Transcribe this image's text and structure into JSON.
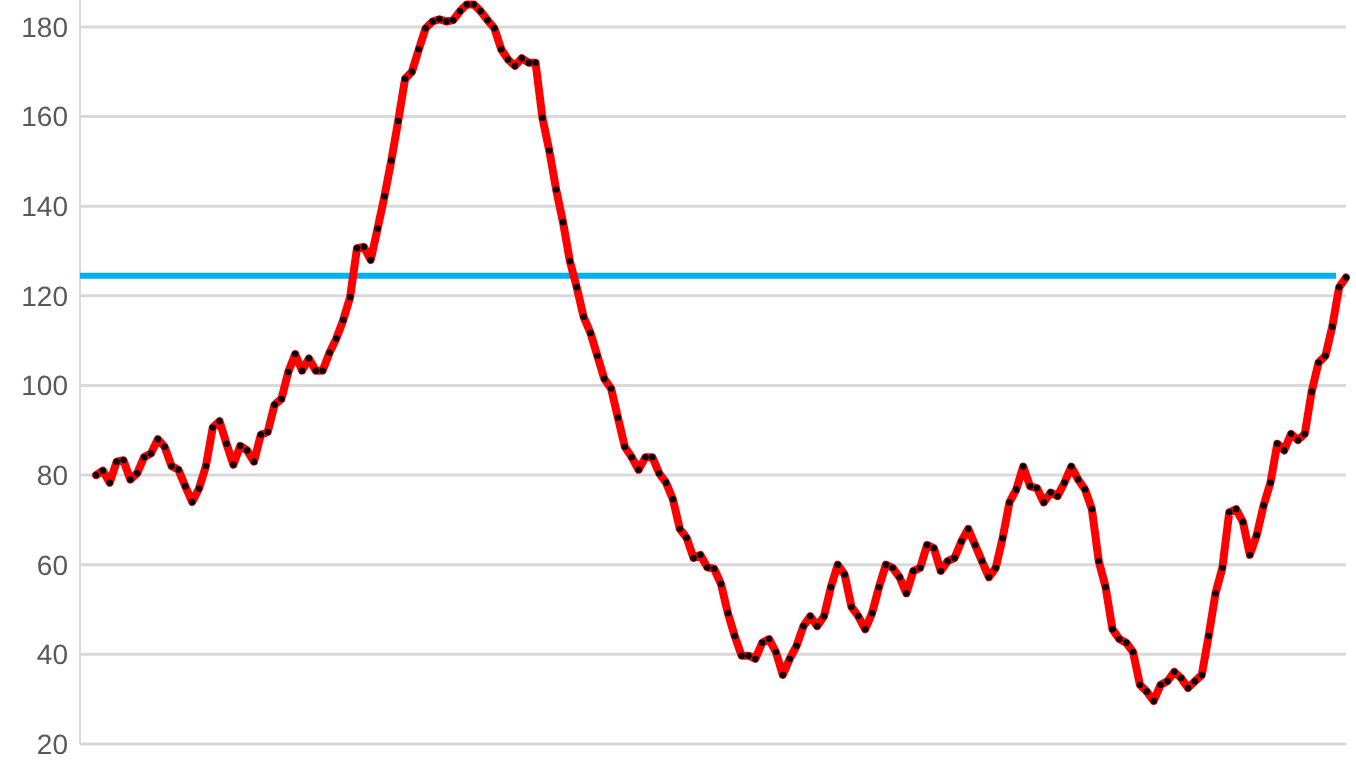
{
  "chart_data": {
    "type": "line",
    "categories": [
      null,
      null,
      null,
      null,
      null,
      null,
      null,
      null,
      null,
      null,
      null,
      null,
      null,
      null,
      null,
      null,
      null,
      null,
      null,
      null,
      null,
      null,
      null,
      null,
      null,
      null,
      null,
      null,
      null,
      null,
      null,
      null,
      null,
      null,
      null,
      null,
      null,
      null,
      null,
      null,
      null,
      null,
      null,
      null,
      null,
      null,
      null,
      null,
      null,
      null,
      null,
      null,
      null,
      null,
      null,
      null,
      null,
      null,
      null,
      null,
      null,
      null,
      null,
      null,
      null,
      null,
      null,
      null,
      null,
      null,
      null,
      null,
      null,
      null,
      null,
      null,
      null,
      null,
      null,
      null,
      null,
      null,
      null,
      null,
      null,
      null,
      null,
      null,
      null,
      null,
      null,
      null,
      null,
      null,
      null,
      null,
      null,
      null,
      null,
      null,
      null,
      null,
      null,
      null,
      null,
      null,
      null,
      null,
      null,
      null,
      null,
      null,
      null,
      null,
      null,
      null,
      null,
      null,
      null,
      null,
      null,
      null,
      null,
      null,
      null,
      null,
      null,
      null,
      null,
      null,
      null,
      null,
      null,
      null,
      null,
      null,
      null,
      null,
      null,
      null,
      null,
      null,
      null,
      null,
      null,
      null,
      null,
      null,
      null,
      null,
      null,
      null,
      null,
      null,
      null,
      null,
      null,
      null,
      null,
      null,
      null,
      null,
      null,
      null,
      null,
      null,
      null,
      null,
      null,
      null,
      null,
      null,
      null,
      null,
      null,
      null,
      null,
      null,
      null,
      null,
      null,
      null,
      null
    ],
    "series": [
      {
        "color": "#ff0000",
        "values": [
          80,
          81,
          78.3,
          83,
          83.3,
          79,
          80.4,
          84,
          84.8,
          88,
          86.3,
          82,
          81.2,
          77.5,
          74,
          77,
          82,
          90.6,
          92,
          87,
          82.3,
          86.5,
          85.5,
          83,
          89,
          89.6,
          95.7,
          97,
          103,
          107,
          103.3,
          106,
          103.3,
          103.3,
          107.3,
          110.5,
          114.6,
          119.7,
          130.6,
          130.9,
          128,
          135,
          142.2,
          150.2,
          159,
          168.4,
          170,
          175,
          179.7,
          181.2,
          181.7,
          181.2,
          181.5,
          183.5,
          185,
          185,
          183.5,
          181.5,
          179.7,
          175,
          172.7,
          171.3,
          173,
          172,
          172,
          159.7,
          152.4,
          143.7,
          136.4,
          127.7,
          121.9,
          115.3,
          111.7,
          106.6,
          101.5,
          99.3,
          92.8,
          86.3,
          84,
          81.2,
          84,
          84,
          80.4,
          78.3,
          74.6,
          68,
          66,
          61.5,
          62.2,
          59.4,
          59.1,
          55.7,
          49.2,
          44.1,
          39.7,
          39.7,
          39,
          42.6,
          43.4,
          40.5,
          35.4,
          39,
          41.9,
          46.3,
          48.5,
          46.3,
          48.5,
          55,
          60,
          57.8,
          50.6,
          48.5,
          45.6,
          49.2,
          55,
          60,
          59.3,
          57.2,
          53.6,
          58.6,
          59.3,
          64.4,
          63.7,
          58.6,
          60.8,
          61.5,
          65.2,
          68,
          64.4,
          60.8,
          57.2,
          59.3,
          65.9,
          73.9,
          76.8,
          81.9,
          77.5,
          77.1,
          73.9,
          76.1,
          75.3,
          78.3,
          81.9,
          79,
          76.8,
          72.4,
          60.8,
          55,
          45.6,
          43.4,
          42.6,
          40.5,
          33.2,
          31.7,
          29.6,
          33.2,
          34,
          36.1,
          34.7,
          32.5,
          34,
          35.4,
          44.1,
          53.6,
          59.3,
          71.7,
          72.4,
          69.5,
          62.2,
          66.6,
          73.2,
          78.3,
          87,
          85.5,
          89.2,
          87.8,
          89.2,
          98.6,
          105.1,
          106.6,
          113.1,
          121.9,
          124.1
        ]
      }
    ],
    "ylim": [
      20,
      186
    ],
    "yticks": [
      20,
      40,
      60,
      80,
      100,
      120,
      140,
      160,
      180
    ],
    "grid": "y",
    "marker": "circle",
    "tick_labels": "y",
    "ref_lines": [
      {
        "axis": "y",
        "value": 124.5,
        "color": "#00b0f0"
      }
    ]
  }
}
